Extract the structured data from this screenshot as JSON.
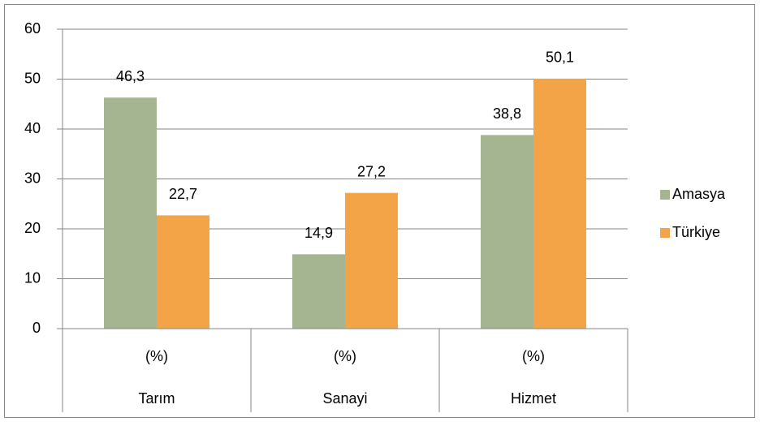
{
  "chart_data": {
    "type": "bar",
    "categories": [
      "Tarım",
      "Sanayi",
      "Hizmet"
    ],
    "subcategories": [
      "(%)",
      "(%)",
      "(%)"
    ],
    "series": [
      {
        "name": "Amasya",
        "color": "#a5b592",
        "values": [
          46.3,
          14.9,
          38.8
        ],
        "value_labels": [
          "46,3",
          "14,9",
          "38,8"
        ]
      },
      {
        "name": "Türkiye",
        "color": "#f3a447",
        "values": [
          22.7,
          27.2,
          50.1
        ],
        "value_labels": [
          "22,7",
          "27,2",
          "50,1"
        ]
      }
    ],
    "ylim": [
      0,
      60
    ],
    "yticks": [
      0,
      10,
      20,
      30,
      40,
      50,
      60
    ],
    "grid": true,
    "legend": "right"
  }
}
